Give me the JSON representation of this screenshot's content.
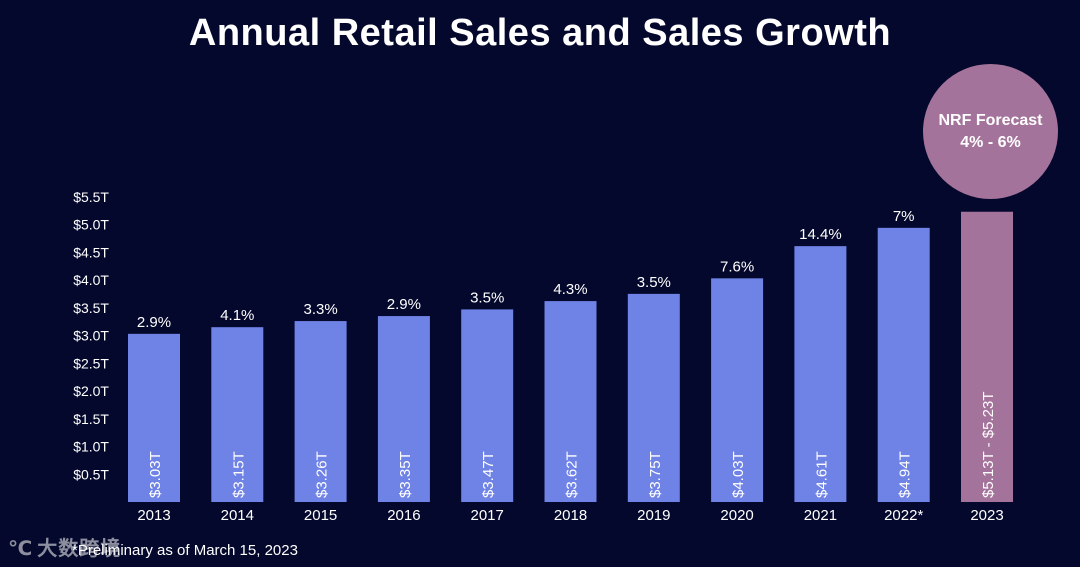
{
  "title": "Annual Retail Sales and Sales Growth",
  "forecast": {
    "heading": "NRF Forecast",
    "range": "4% - 6%",
    "color": "#a4739b"
  },
  "footnote": "*Preliminary as of March 15, 2023",
  "watermark": "大数跨境",
  "colors": {
    "background": "#04082c",
    "bar": "#6f82e6",
    "forecast_bar": "#a4739b",
    "text": "#ffffff"
  },
  "chart_data": {
    "type": "bar",
    "title": "Annual Retail Sales and Sales Growth",
    "xlabel": "",
    "ylabel": "",
    "ylim": [
      0,
      5.5
    ],
    "y_ticks": [
      {
        "value": 0.5,
        "label": "$0.5T"
      },
      {
        "value": 1.0,
        "label": "$1.0T"
      },
      {
        "value": 1.5,
        "label": "$1.5T"
      },
      {
        "value": 2.0,
        "label": "$2.0T"
      },
      {
        "value": 2.5,
        "label": "$2.5T"
      },
      {
        "value": 3.0,
        "label": "$3.0T"
      },
      {
        "value": 3.5,
        "label": "$3.5T"
      },
      {
        "value": 4.0,
        "label": "$4.0T"
      },
      {
        "value": 4.5,
        "label": "$4.5T"
      },
      {
        "value": 5.0,
        "label": "$5.0T"
      },
      {
        "value": 5.5,
        "label": "$5.5T"
      }
    ],
    "categories": [
      "2013",
      "2014",
      "2015",
      "2016",
      "2017",
      "2018",
      "2019",
      "2020",
      "2021",
      "2022*",
      "2023"
    ],
    "values": [
      3.03,
      3.15,
      3.26,
      3.35,
      3.47,
      3.62,
      3.75,
      4.03,
      4.61,
      4.94,
      5.23
    ],
    "value_labels": [
      "$3.03T",
      "$3.15T",
      "$3.26T",
      "$3.35T",
      "$3.47T",
      "$3.62T",
      "$3.75T",
      "$4.03T",
      "$4.61T",
      "$4.94T",
      "$5.13T - $5.23T"
    ],
    "growth_labels": [
      "2.9%",
      "4.1%",
      "3.3%",
      "2.9%",
      "3.5%",
      "4.3%",
      "3.5%",
      "7.6%",
      "14.4%",
      "7%",
      ""
    ],
    "forecast_index": 10
  }
}
